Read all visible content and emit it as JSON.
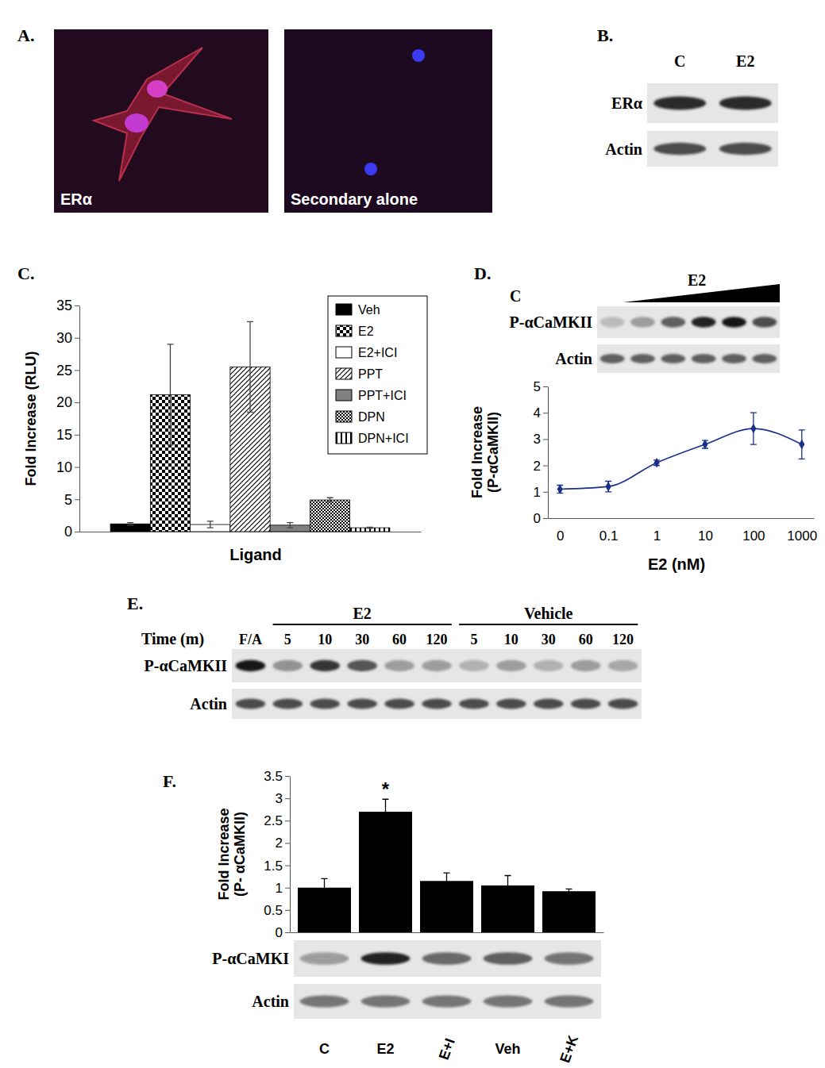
{
  "panels": [
    {
      "label": "A.",
      "images": [
        {
          "caption": "ERα"
        },
        {
          "caption": "Secondary alone"
        }
      ]
    },
    {
      "label": "B.",
      "lanes": [
        "C",
        "E2"
      ],
      "blots": [
        {
          "label": "ERα",
          "intensity": [
            0.85,
            0.85
          ]
        },
        {
          "label": "Actin",
          "intensity": [
            0.7,
            0.7
          ]
        }
      ]
    },
    {
      "label": "C."
    },
    {
      "label": "D.",
      "control_lane": "C",
      "treatment": "E2",
      "blots": [
        {
          "label": "P-αCaMKII",
          "intensity": [
            0.15,
            0.3,
            0.6,
            0.9,
            0.95,
            0.7
          ]
        },
        {
          "label": "Actin",
          "intensity": [
            0.6,
            0.6,
            0.6,
            0.6,
            0.6,
            0.6
          ]
        }
      ]
    },
    {
      "label": "E.",
      "time_label": "Time (m)",
      "control_lane": "F/A",
      "groups": [
        {
          "name": "E2",
          "lanes": [
            "5",
            "10",
            "30",
            "60",
            "120"
          ]
        },
        {
          "name": "Vehicle",
          "lanes": [
            "5",
            "10",
            "30",
            "60",
            "120"
          ]
        }
      ],
      "blots": [
        {
          "label": "P-αCaMKII",
          "intensity": [
            0.95,
            0.35,
            0.8,
            0.65,
            0.3,
            0.3,
            0.2,
            0.3,
            0.2,
            0.3,
            0.25
          ]
        },
        {
          "label": "Actin",
          "intensity": [
            0.7,
            0.7,
            0.7,
            0.7,
            0.7,
            0.7,
            0.7,
            0.7,
            0.7,
            0.7,
            0.7
          ]
        }
      ]
    },
    {
      "label": "F.",
      "blots": [
        {
          "label": "P-αCaMKI",
          "intensity": [
            0.3,
            0.9,
            0.55,
            0.6,
            0.5
          ]
        },
        {
          "label": "Actin",
          "intensity": [
            0.5,
            0.5,
            0.5,
            0.5,
            0.5
          ]
        }
      ]
    }
  ],
  "chart_data": [
    {
      "type": "bar",
      "y_label": "Fold Increase (RLU)",
      "x_label": "Ligand",
      "categories": [
        null
      ],
      "series": [
        {
          "name": "Veh",
          "color": "#000000",
          "values": [
            1.2
          ],
          "errors": [
            0.2
          ]
        },
        {
          "name": "E2",
          "color": "#000000",
          "values": [
            21.2
          ],
          "errors": [
            7.8
          ]
        },
        {
          "name": "E2+ICI",
          "color": "#ffffff",
          "values": [
            1.1
          ],
          "errors": [
            0.5
          ]
        },
        {
          "name": "PPT",
          "color": "#ffffff",
          "values": [
            25.5
          ],
          "errors": [
            7.0
          ]
        },
        {
          "name": "PPT+ICI",
          "color": "#808080",
          "values": [
            1.0
          ],
          "errors": [
            0.4
          ]
        },
        {
          "name": "DPN",
          "color": "#000000",
          "values": [
            4.9
          ],
          "errors": [
            0.35
          ]
        },
        {
          "name": "DPN+ICI",
          "color": "#ffffff",
          "values": [
            0.6
          ],
          "errors": [
            0.1
          ]
        }
      ],
      "ylim": [
        0,
        35
      ],
      "yticks": [
        0,
        5,
        10,
        15,
        20,
        25,
        30,
        35
      ],
      "legend": "top-right",
      "tick_labels": "y"
    },
    {
      "type": "line",
      "y_label": "Fold Increase\n(P-αCaMKII)",
      "x_label": "E2 (nM)",
      "categories": [
        "0",
        "0.1",
        "1",
        "10",
        "100",
        "1000"
      ],
      "values": [
        1.1,
        1.2,
        2.1,
        2.8,
        3.4,
        2.8
      ],
      "errors": [
        0.15,
        0.2,
        0.1,
        0.15,
        0.6,
        0.55
      ],
      "color": "#1a2f8a",
      "marker": "diamond",
      "ylim": [
        0,
        5
      ],
      "yticks": [
        0,
        1,
        2,
        3,
        4,
        5
      ]
    },
    {
      "type": "bar",
      "y_label": "Fold Increase\n(P- αCaMKII)",
      "categories": [
        "C",
        "E2",
        "E+I",
        "Veh",
        "E+K"
      ],
      "values": [
        1.0,
        2.7,
        1.15,
        1.05,
        0.92
      ],
      "errors": [
        0.2,
        0.28,
        0.18,
        0.22,
        0.05
      ],
      "color": "#000000",
      "ylim": [
        0,
        3.5
      ],
      "yticks": [
        0,
        0.5,
        1,
        1.5,
        2,
        2.5,
        3,
        3.5
      ],
      "annotations": [
        {
          "text": "*",
          "category": "E2"
        }
      ]
    }
  ]
}
